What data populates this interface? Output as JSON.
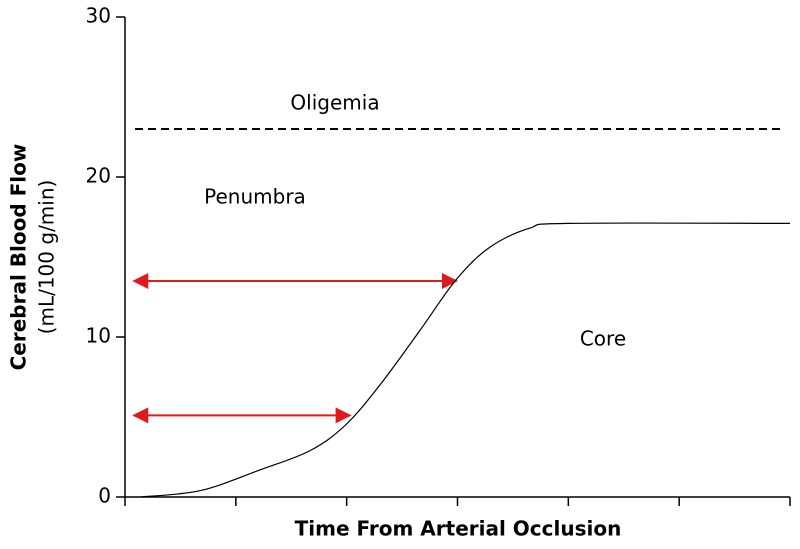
{
  "chart_data": {
    "type": "line",
    "xlabel": "Time From Arterial Occlusion",
    "ylabel": [
      "Cerebral Blood Flow",
      "(mL/100 g/min)"
    ],
    "x": [
      0.14,
      0.68,
      1.22,
      1.67,
      1.99,
      2.3,
      2.66,
      2.99,
      3.29,
      3.65,
      4.0,
      6.0
    ],
    "series": [
      {
        "name": "Core",
        "color": "#000000",
        "values": [
          0,
          0.4,
          1.7,
          2.9,
          4.5,
          7.0,
          10.4,
          13.6,
          15.6,
          16.8,
          17.1,
          17.1
        ]
      }
    ],
    "xlim": [
      0,
      6
    ],
    "xticks": [
      0,
      1,
      2,
      3,
      4,
      5,
      6
    ],
    "ylim": [
      0,
      30
    ],
    "yticks": [
      0,
      10,
      20,
      30
    ],
    "hline": {
      "y": 23,
      "style": "dashed",
      "color": "#000000"
    },
    "arrows": [
      {
        "y": 13.5,
        "x": [
          0.08,
          2.99
        ],
        "color": "#e0191f"
      },
      {
        "y": 5.1,
        "x": [
          0.08,
          2.03
        ],
        "color": "#e0191f"
      }
    ],
    "annotations": [
      "Oligemia",
      "Penumbra",
      "Core"
    ],
    "grid": false
  }
}
